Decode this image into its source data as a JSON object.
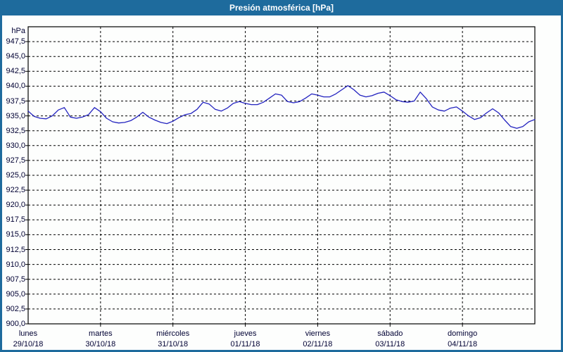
{
  "window": {
    "title": "Presión atmosférica [hPa]"
  },
  "colors": {
    "frame": "#1e6b9d",
    "title_text": "#ffffff",
    "plot_background": "#fdfefd",
    "grid": "#000000",
    "axis_text": "#000033",
    "line": "#2222bf"
  },
  "chart_data": {
    "type": "line",
    "title": "Presión atmosférica [hPa]",
    "unit_label": "hPa",
    "ylabel": "hPa",
    "ylim": [
      900,
      950
    ],
    "ytick_step": 2.5,
    "ytick_labels": [
      "947,5",
      "945,0",
      "942,5",
      "940,0",
      "937,5",
      "935,0",
      "932,5",
      "930,0",
      "927,5",
      "925,0",
      "922,5",
      "920,0",
      "917,5",
      "915,0",
      "912,5",
      "910,0",
      "907,5",
      "905,0",
      "902,5",
      "900,0"
    ],
    "x_days": [
      {
        "name": "lunes",
        "date": "29/10/18"
      },
      {
        "name": "martes",
        "date": "30/10/18"
      },
      {
        "name": "miércoles",
        "date": "31/10/18"
      },
      {
        "name": "jueves",
        "date": "01/11/18"
      },
      {
        "name": "viernes",
        "date": "02/11/18"
      },
      {
        "name": "sábado",
        "date": "03/11/18"
      },
      {
        "name": "domingo",
        "date": "04/11/18"
      }
    ],
    "grid": true,
    "legend": "none",
    "sample_interval_hours": 2,
    "series": [
      {
        "name": "Presión atmosférica",
        "values": [
          935.8,
          934.9,
          934.6,
          934.5,
          935.0,
          936.0,
          936.4,
          934.8,
          934.6,
          934.8,
          935.2,
          936.4,
          935.7,
          934.6,
          934.0,
          933.8,
          933.9,
          934.2,
          934.8,
          935.6,
          934.8,
          934.3,
          933.9,
          933.7,
          934.1,
          934.7,
          935.2,
          935.4,
          936.1,
          937.3,
          937.0,
          936.1,
          935.8,
          936.3,
          937.1,
          937.4,
          937.1,
          936.9,
          936.9,
          937.3,
          938.0,
          938.7,
          938.5,
          937.4,
          937.2,
          937.4,
          938.0,
          938.7,
          938.5,
          938.2,
          938.2,
          938.7,
          939.4,
          940.1,
          939.4,
          938.5,
          938.2,
          938.4,
          938.8,
          939.0,
          938.4,
          937.7,
          937.4,
          937.3,
          937.5,
          939.0,
          937.9,
          936.5,
          936.0,
          935.8,
          936.3,
          936.5,
          935.8,
          935.0,
          934.4,
          934.7,
          935.5,
          936.2,
          935.5,
          934.3,
          933.2,
          932.9,
          933.2,
          934.0,
          934.4
        ]
      }
    ]
  }
}
